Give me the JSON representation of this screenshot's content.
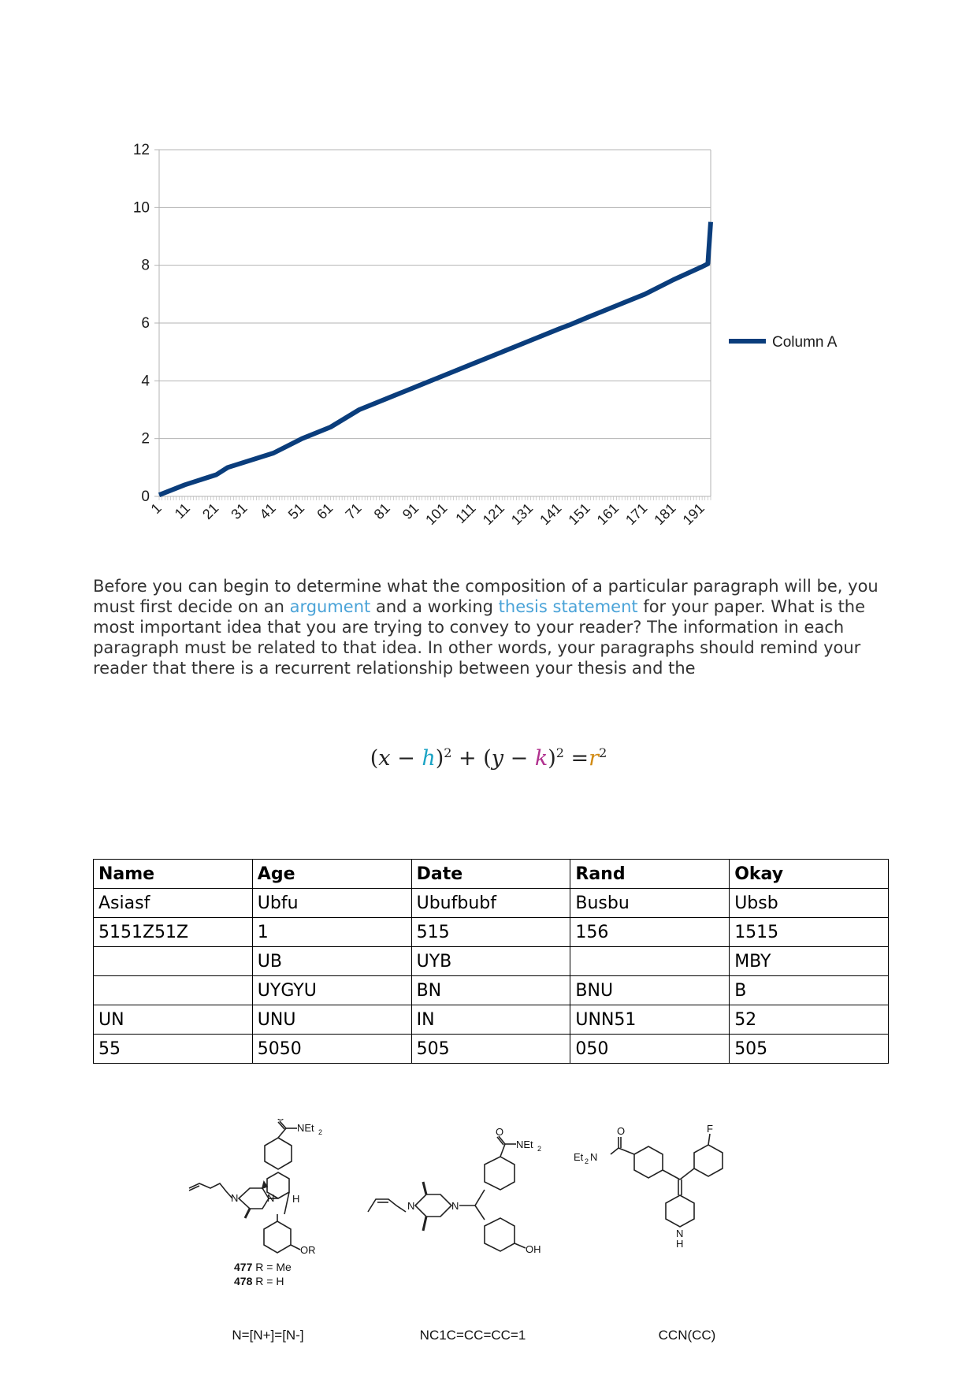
{
  "chart_data": {
    "type": "line",
    "series": [
      {
        "name": "Column A",
        "color": "#0a3d7c"
      }
    ],
    "legend": "right",
    "ylim": [
      0,
      12
    ],
    "yticks": [
      "0",
      "2",
      "4",
      "6",
      "8",
      "10",
      "12"
    ],
    "xticks": [
      "1",
      "11",
      "21",
      "31",
      "41",
      "51",
      "61",
      "71",
      "81",
      "91",
      "101",
      "111",
      "121",
      "131",
      "141",
      "151",
      "161",
      "171",
      "181",
      "191"
    ],
    "x_range": [
      1,
      194
    ],
    "points": [
      [
        1,
        0.05
      ],
      [
        10,
        0.4
      ],
      [
        21,
        0.75
      ],
      [
        25,
        1.0
      ],
      [
        41,
        1.5
      ],
      [
        51,
        2.0
      ],
      [
        61,
        2.4
      ],
      [
        71,
        3.0
      ],
      [
        81,
        3.4
      ],
      [
        91,
        3.8
      ],
      [
        101,
        4.2
      ],
      [
        111,
        4.6
      ],
      [
        121,
        5.0
      ],
      [
        131,
        5.4
      ],
      [
        141,
        5.8
      ],
      [
        145,
        5.95
      ],
      [
        151,
        6.2
      ],
      [
        161,
        6.6
      ],
      [
        171,
        7.0
      ],
      [
        181,
        7.5
      ],
      [
        191,
        7.95
      ],
      [
        193,
        8.05
      ],
      [
        194,
        9.5
      ]
    ],
    "grid": true
  },
  "paragraph": {
    "part1": "Before you can begin to determine what the composition of a particular paragraph will be, you must first decide on an ",
    "link1": "argument",
    "part2": " and a working ",
    "link2": "thesis statement",
    "part3": " for your paper. What is the most important idea that you are trying to convey to your reader? The information in each paragraph must be related to that idea. In other words, your paragraphs should remind your reader that there is a recurrent relationship between your thesis and the"
  },
  "equation": {
    "x": "x",
    "h": "h",
    "y": "y",
    "k": "k",
    "r": "r",
    "exp": "2",
    "colors": {
      "h": "#1aa3c4",
      "k": "#b0308e",
      "r": "#d18a12"
    }
  },
  "table": {
    "headers": [
      "Name",
      "Age",
      "Date",
      "Rand",
      "Okay"
    ],
    "rows": [
      [
        "Asiasf",
        "Ubfu",
        "Ubufbubf",
        "Busbu",
        "Ubsb"
      ],
      [
        "5151Z51Z",
        "1",
        "515",
        "156",
        "1515"
      ],
      [
        "",
        "UB",
        "UYB",
        "",
        "MBY"
      ],
      [
        "",
        "UYGYU",
        "BN",
        "BNU",
        "B"
      ],
      [
        "UN",
        "UNU",
        "IN",
        "UNN51",
        "52"
      ],
      [
        "55",
        "5050",
        "505",
        "050",
        "505"
      ]
    ]
  },
  "molecules": {
    "m1": {
      "label_a": "477",
      "label_a_text": "R = Me",
      "label_b": "478",
      "label_b_text": "R = H",
      "smiles": "N=[N+]=[N-]"
    },
    "m2": {
      "smiles": "NC1C=CC=CC=1"
    },
    "m3": {
      "smiles": "CCN(CC)"
    }
  }
}
